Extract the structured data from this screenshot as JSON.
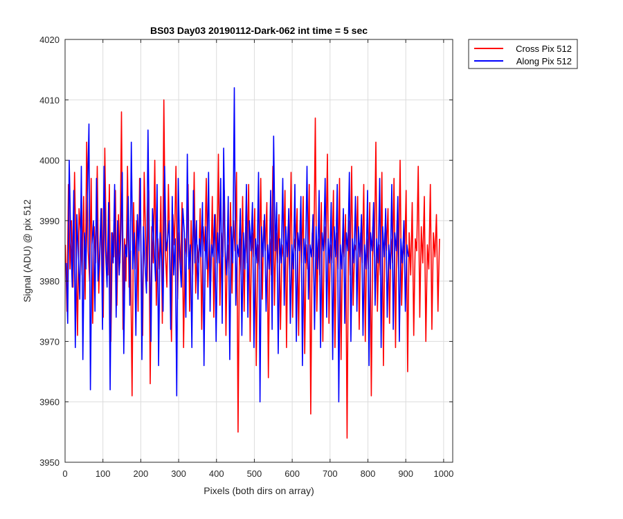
{
  "chart_data": {
    "type": "line",
    "title": "BS03 Day03 20190112-Dark-062 int time = 5 sec",
    "xlabel": "Pixels (both dirs on array)",
    "ylabel": "Signal (ADU) @ pix 512",
    "xlim": [
      0,
      1024
    ],
    "ylim": [
      3950,
      4020
    ],
    "xticks": [
      0,
      100,
      200,
      300,
      400,
      500,
      600,
      700,
      800,
      900,
      1000
    ],
    "yticks": [
      3950,
      3960,
      3970,
      3980,
      3990,
      4000,
      4010,
      4020
    ],
    "grid": true,
    "legend_position": "outside-top-right",
    "series_color_note": "colors below",
    "series": [
      {
        "name": "Cross Pix 512",
        "color": "#ff0000",
        "x_start": 1,
        "x_step": 4,
        "values": [
          3986,
          3975,
          3996,
          3982,
          3990,
          3979,
          3998,
          3984,
          3971,
          3992,
          3988,
          3981,
          3994,
          3977,
          4003,
          3985,
          3980,
          3997,
          3973,
          3989,
          3983,
          3999,
          3978,
          3987,
          3992,
          3974,
          4002,
          3985,
          3981,
          3996,
          3970,
          3988,
          3984,
          3995,
          3976,
          3991,
          3983,
          4008,
          3972,
          3987,
          3980,
          3999,
          3979,
          3985,
          3961,
          3993,
          3982,
          3990,
          3975,
          3997,
          3984,
          3971,
          3998,
          3986,
          3980,
          3995,
          3963,
          3989,
          3983,
          4000,
          3976,
          3987,
          3982,
          3994,
          3973,
          4010,
          3985,
          3979,
          3996,
          3984,
          3970,
          3991,
          3986,
          3999,
          3977,
          3988,
          3982,
          3993,
          3969,
          3987,
          3984,
          3996,
          3975,
          3990,
          3981,
          3998,
          3978,
          3986,
          3983,
          3992,
          3972,
          3989,
          3985,
          3997,
          3979,
          3987,
          3980,
          3994,
          3974,
          3991,
          3983,
          4001,
          3976,
          3988,
          3984,
          3995,
          3971,
          3986,
          3982,
          3993,
          3978,
          3990,
          3985,
          3998,
          3955,
          3987,
          3981,
          3994,
          3975,
          3989,
          3983,
          3996,
          3970,
          3988,
          3984,
          3992,
          3966,
          3986,
          3982,
          3997,
          3977,
          3990,
          3985,
          3993,
          3964,
          3987,
          3981,
          3999,
          3976,
          3988,
          3983,
          3991,
          3972,
          3986,
          3984,
          3995,
          3969,
          3989,
          3982,
          3998,
          3974,
          3987,
          3985,
          3992,
          3971,
          3990,
          3983,
          3994,
          3968,
          3986,
          3982,
          3996,
          3958,
          3988,
          3984,
          4007,
          3975,
          3987,
          3981,
          3993,
          3970,
          3989,
          3985,
          4001,
          3973,
          3986,
          3983,
          3995,
          3969,
          3988,
          3982,
          3997,
          3967,
          3987,
          3984,
          3991,
          3954,
          3990,
          3981,
          3999,
          3976,
          3986,
          3985,
          3994,
          3972,
          3988,
          3983,
          3996,
          3970,
          3987,
          3982,
          3993,
          3961,
          3989,
          3984,
          4003,
          3975,
          3986,
          3981,
          3998,
          3966,
          3988,
          3985,
          3992,
          3973,
          3987,
          3983,
          3997,
          3969,
          3990,
          3982,
          4000,
          3976,
          3986,
          3984,
          3995,
          3965,
          3988,
          3981,
          3993,
          3971,
          3987,
          3985,
          3999,
          3974,
          3989,
          3983,
          3994,
          3970,
          3986,
          3982,
          3996,
          3972,
          3988,
          3984,
          3991,
          3975,
          3987
        ]
      },
      {
        "name": "Along Pix 512",
        "color": "#0000ff",
        "x_start": 3,
        "x_step": 4,
        "values": [
          3983,
          3973,
          4000,
          3987,
          3979,
          3995,
          3969,
          3991,
          3984,
          3977,
          3999,
          3967,
          3988,
          3982,
          3994,
          4006,
          3962,
          3986,
          3990,
          3975,
          3997,
          3980,
          3984,
          3992,
          3972,
          3999,
          3985,
          3979,
          3993,
          3962,
          3988,
          3983,
          3996,
          3974,
          3990,
          3981,
          3987,
          3998,
          3968,
          3986,
          3984,
          3994,
          3976,
          4003,
          3982,
          3988,
          3971,
          3991,
          3985,
          3997,
          3967,
          3989,
          3983,
          3978,
          4005,
          3984,
          3970,
          3992,
          3986,
          3980,
          3996,
          3966,
          3988,
          3983,
          3975,
          3999,
          3985,
          3987,
          3990,
          3972,
          3994,
          3981,
          3987,
          3961,
          3997,
          3984,
          3979,
          3992,
          3988,
          3974,
          4001,
          3982,
          3986,
          3969,
          3995,
          3983,
          3990,
          3977,
          3987,
          3984,
          3993,
          3966,
          3989,
          3982,
          3998,
          3975,
          3986,
          3984,
          3991,
          3970,
          3988,
          3983,
          3997,
          3973,
          4002,
          3985,
          3981,
          3994,
          3967,
          3989,
          3983,
          4012,
          3976,
          3986,
          3984,
          3992,
          3971,
          3988,
          3982,
          3996,
          3974,
          3990,
          3985,
          3993,
          3969,
          3987,
          3983,
          3998,
          3960,
          3989,
          3984,
          3991,
          3975,
          3986,
          3982,
          3995,
          3972,
          4004,
          3985,
          3993,
          3968,
          3987,
          3983,
          3997,
          3976,
          3989,
          3984,
          3992,
          3973,
          3986,
          3982,
          3996,
          3970,
          3988,
          3985,
          3994,
          3966,
          3987,
          3983,
          3999,
          3977,
          3986,
          3984,
          3991,
          3972,
          3989,
          3982,
          3995,
          3969,
          3988,
          3985,
          3997,
          3974,
          3987,
          3983,
          3993,
          3967,
          3989,
          3984,
          3996,
          3960,
          3986,
          3982,
          3992,
          3973,
          3988,
          3985,
          3998,
          3970,
          3987,
          3983,
          3994,
          3975,
          3989,
          3984,
          3991,
          3971,
          3986,
          3982,
          3995,
          3966,
          3988,
          3985,
          3993,
          3976,
          3987,
          3983,
          3997,
          3969,
          3989,
          3984,
          3992,
          3974,
          3986,
          3982,
          3996,
          3972,
          3988,
          3985,
          3994,
          3970,
          3987,
          3983,
          3990,
          3975,
          3986,
          3984
        ]
      }
    ]
  }
}
